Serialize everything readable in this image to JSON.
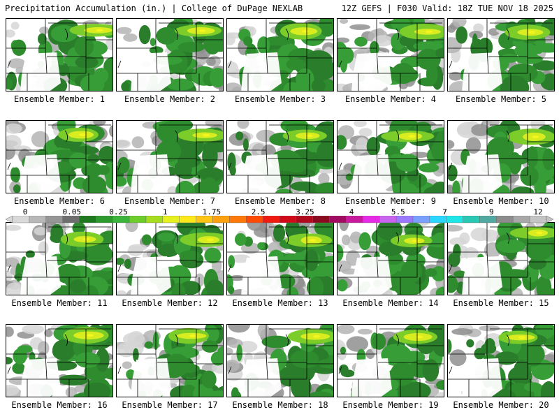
{
  "header": {
    "left": "Precipitation Accumulation (in.) | College of DuPage NEXLAB",
    "right": "12Z GEFS | F030 Valid: 18Z TUE NOV 18 2025"
  },
  "member_label_prefix": "Ensemble Member:",
  "members": [
    1,
    2,
    3,
    4,
    5,
    6,
    7,
    8,
    9,
    10,
    11,
    12,
    13,
    14,
    15,
    16,
    17,
    18,
    19,
    20
  ],
  "colorbar": {
    "ticks": [
      "0",
      "0.05",
      "0.25",
      "1",
      "1.75",
      "2.5",
      "3.25",
      "4",
      "5.5",
      "7",
      "9",
      "12"
    ],
    "colors": [
      "#d9d9d9",
      "#b8b8b8",
      "#969696",
      "#6e6e6e",
      "#1f7a1f",
      "#2e9a2e",
      "#3cb43c",
      "#6ccc2a",
      "#a6dc1e",
      "#e6f01e",
      "#ffe81a",
      "#ffc414",
      "#ffa00e",
      "#ff7808",
      "#ff4a04",
      "#f01a10",
      "#d00a18",
      "#b0081c",
      "#8c0a20",
      "#a00a60",
      "#c81a9c",
      "#e62ae6",
      "#c864f0",
      "#9a78ff",
      "#7aa0ff",
      "#28d6ff",
      "#1ee6e6",
      "#28c8b4",
      "#50a8a0",
      "#8c8c8c",
      "#a8a8a8",
      "#c4c4c4"
    ]
  }
}
